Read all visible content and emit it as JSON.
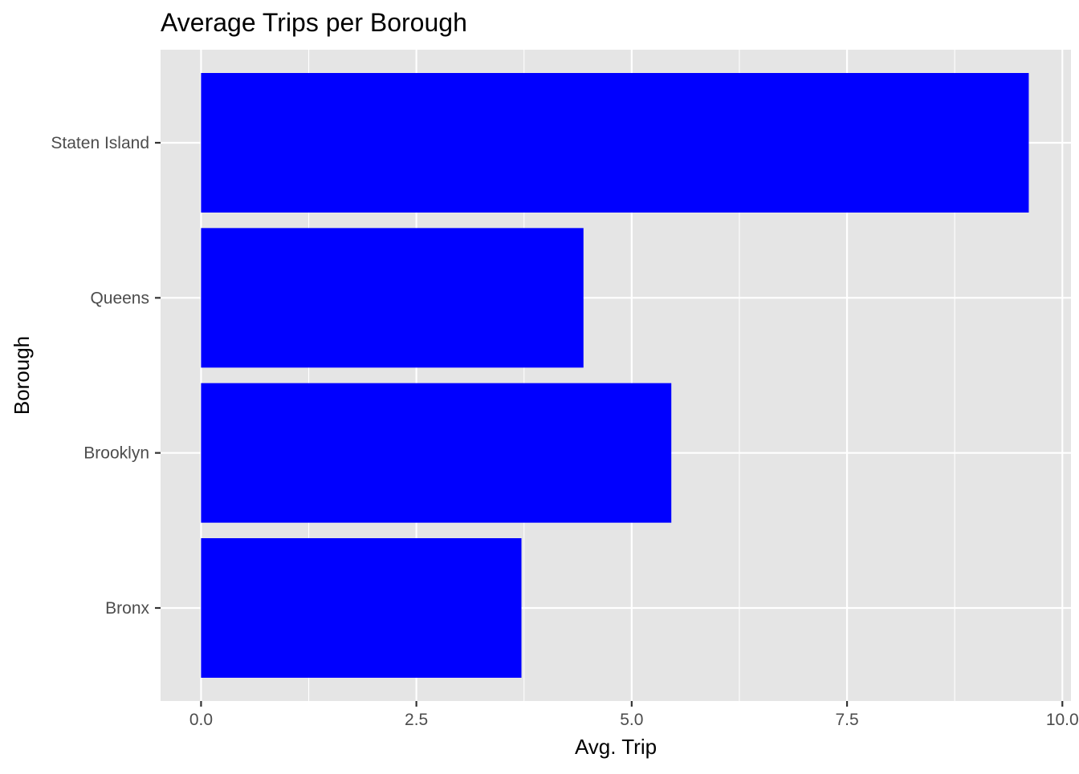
{
  "chart_data": {
    "type": "bar",
    "orientation": "horizontal",
    "title": "Average Trips per Borough",
    "xlabel": "Avg. Trip",
    "ylabel": "Borough",
    "categories": [
      "Bronx",
      "Brooklyn",
      "Queens",
      "Staten Island"
    ],
    "values": [
      3.72,
      5.46,
      4.44,
      9.61
    ],
    "xlim": [
      -0.47,
      10.1
    ],
    "x_ticks": [
      0.0,
      2.5,
      5.0,
      7.5,
      10.0
    ],
    "x_tick_labels": [
      "0.0",
      "2.5",
      "5.0",
      "7.5",
      "10.0"
    ],
    "grid": true,
    "legend": "none",
    "colors": {
      "bar": "#0000ff",
      "panel": "#e5e5e5",
      "grid": "#ffffff"
    }
  }
}
